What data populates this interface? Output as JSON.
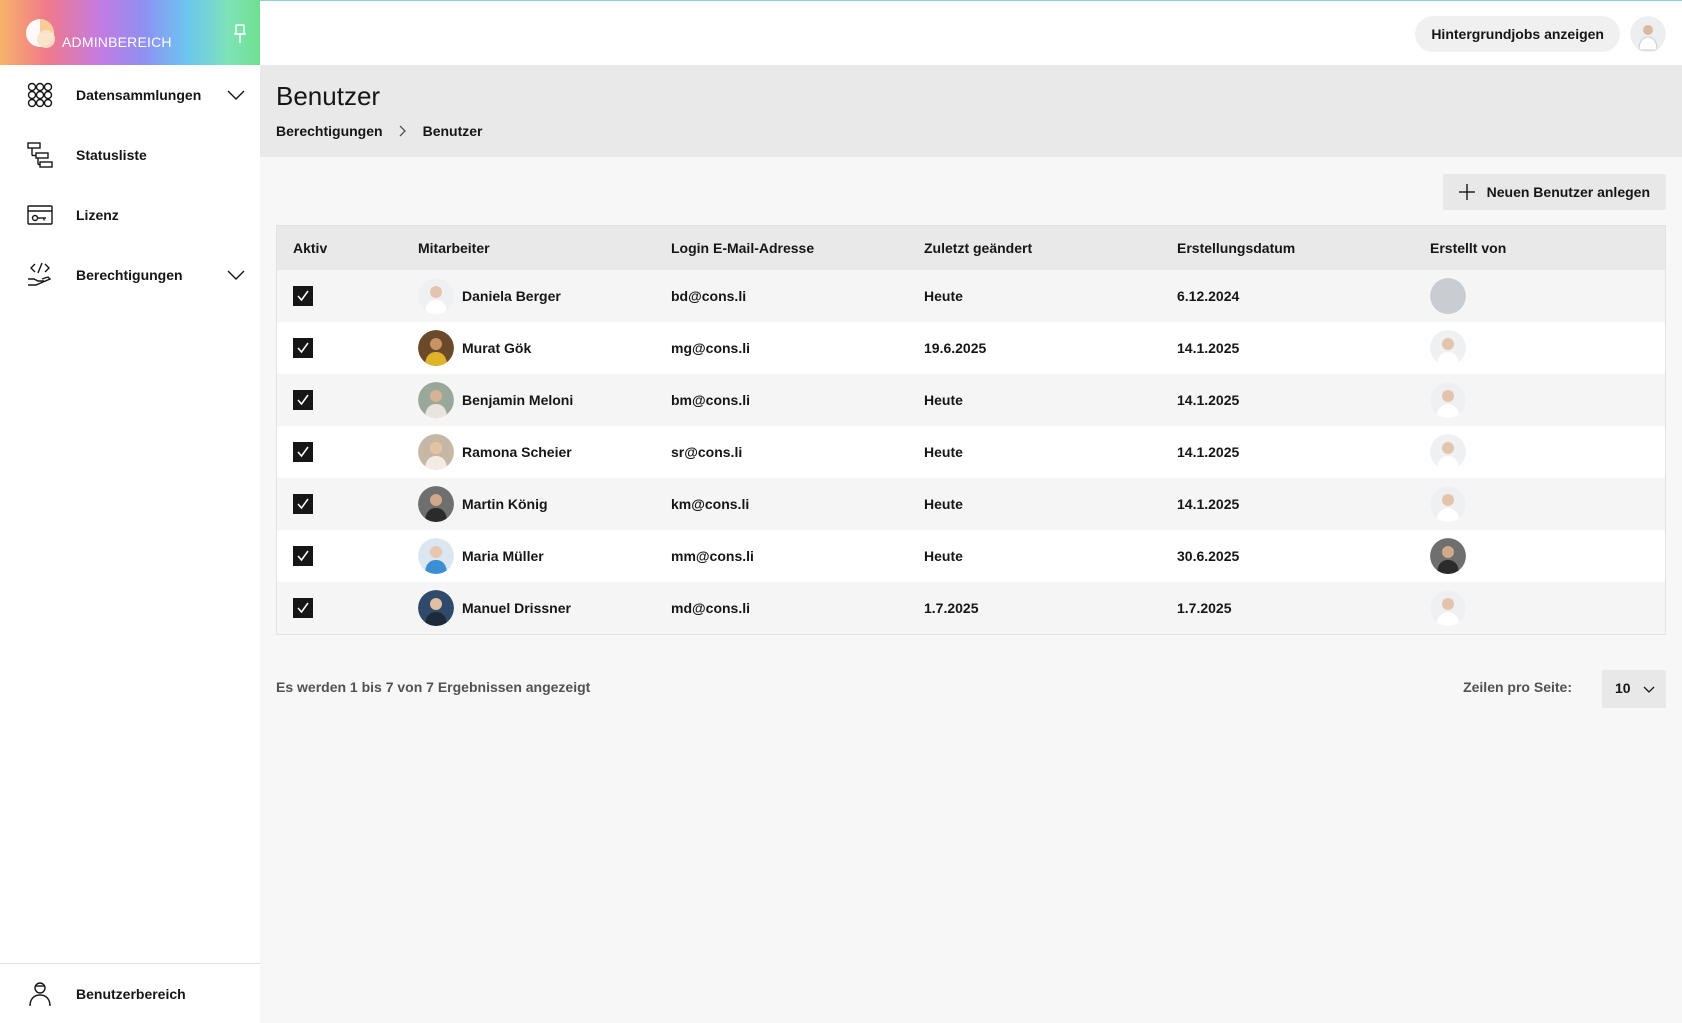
{
  "brand": {
    "title": "ADMINBEREICH"
  },
  "sidebar": {
    "items": [
      {
        "label": "Datensammlungen",
        "icon": "grid-circles-icon",
        "has_chevron": true
      },
      {
        "label": "Statusliste",
        "icon": "hierarchy-list-icon",
        "has_chevron": false
      },
      {
        "label": "Lizenz",
        "icon": "license-card-icon",
        "has_chevron": false
      },
      {
        "label": "Berechtigungen",
        "icon": "code-hand-icon",
        "has_chevron": true
      }
    ],
    "footer": {
      "label": "Benutzerbereich",
      "icon": "user-icon"
    }
  },
  "topbar": {
    "background_jobs_label": "Hintergrundjobs anzeigen"
  },
  "page": {
    "title": "Benutzer",
    "breadcrumb": [
      {
        "label": "Berechtigungen"
      },
      {
        "label": "Benutzer"
      }
    ],
    "new_user_label": "Neuen Benutzer anlegen"
  },
  "table": {
    "columns": [
      "Aktiv",
      "Mitarbeiter",
      "Login E-Mail-Adresse",
      "Zuletzt geändert",
      "Erstellungsdatum",
      "Erstellt von"
    ],
    "rows": [
      {
        "active": true,
        "name": "Daniela Berger",
        "email": "bd@cons.li",
        "modified": "Heute",
        "created": "6.12.2024",
        "creator": "none"
      },
      {
        "active": true,
        "name": "Murat Gök",
        "email": "mg@cons.li",
        "modified": "19.6.2025",
        "created": "14.1.2025",
        "creator": "person"
      },
      {
        "active": true,
        "name": "Benjamin Meloni",
        "email": "bm@cons.li",
        "modified": "Heute",
        "created": "14.1.2025",
        "creator": "person"
      },
      {
        "active": true,
        "name": "Ramona Scheier",
        "email": "sr@cons.li",
        "modified": "Heute",
        "created": "14.1.2025",
        "creator": "person"
      },
      {
        "active": true,
        "name": "Martin König",
        "email": "km@cons.li",
        "modified": "Heute",
        "created": "14.1.2025",
        "creator": "person"
      },
      {
        "active": true,
        "name": "Maria Müller",
        "email": "mm@cons.li",
        "modified": "Heute",
        "created": "30.6.2025",
        "creator": "dark-person"
      },
      {
        "active": true,
        "name": "Manuel Drissner",
        "email": "md@cons.li",
        "modified": "1.7.2025",
        "created": "1.7.2025",
        "creator": "person"
      }
    ]
  },
  "pagination": {
    "results_text": "Es werden 1 bis 7 von 7 Ergebnissen angezeigt",
    "rows_per_page_label": "Zeilen pro Seite:",
    "rows_per_page_value": "10"
  },
  "colors": {
    "header_gray": "#e9e9ea",
    "checkbox": "#161616",
    "page_bg": "#f7f7f7"
  }
}
